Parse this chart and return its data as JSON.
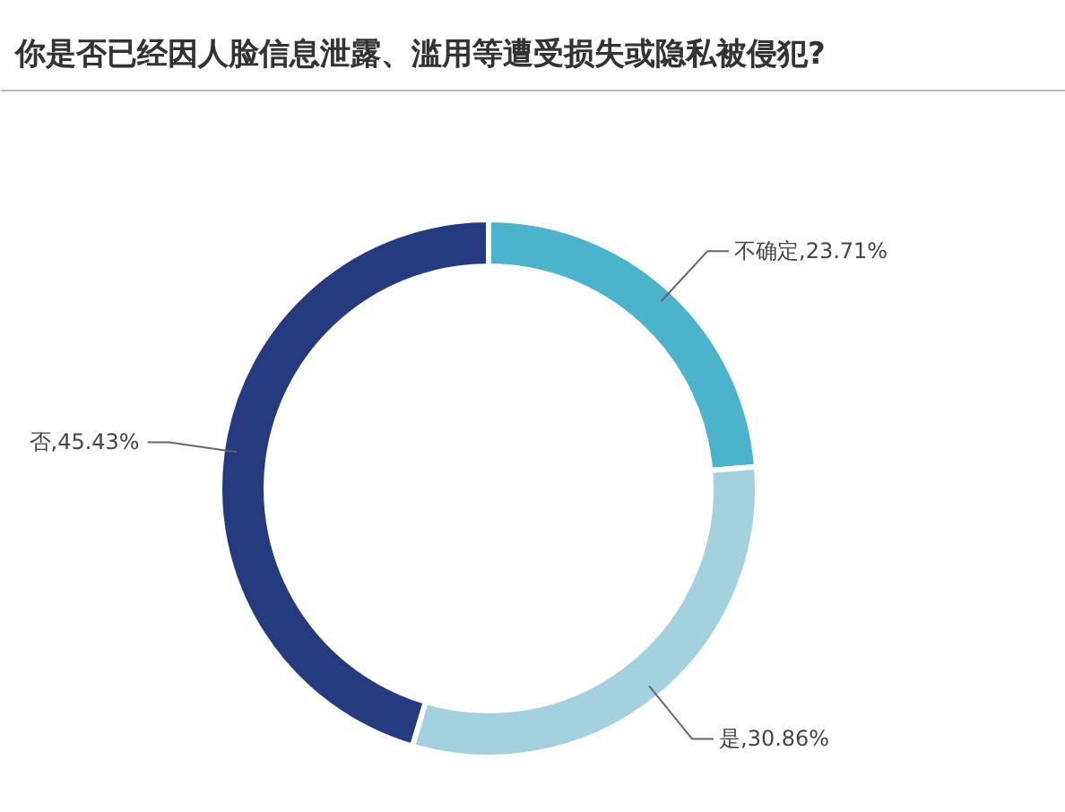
{
  "chart_data": {
    "type": "donut",
    "title": "你是否已经因人脸信息泄露、滥用等遭受损失或隐私被侵犯?",
    "categories": [
      "不确定",
      "是",
      "否"
    ],
    "values": [
      23.71,
      30.86,
      45.43
    ],
    "colors": [
      "#4bb3cc",
      "#a3d2de",
      "#243b80"
    ],
    "value_labels": [
      ",23.71%",
      ",30.86%",
      ",45.43%"
    ]
  }
}
